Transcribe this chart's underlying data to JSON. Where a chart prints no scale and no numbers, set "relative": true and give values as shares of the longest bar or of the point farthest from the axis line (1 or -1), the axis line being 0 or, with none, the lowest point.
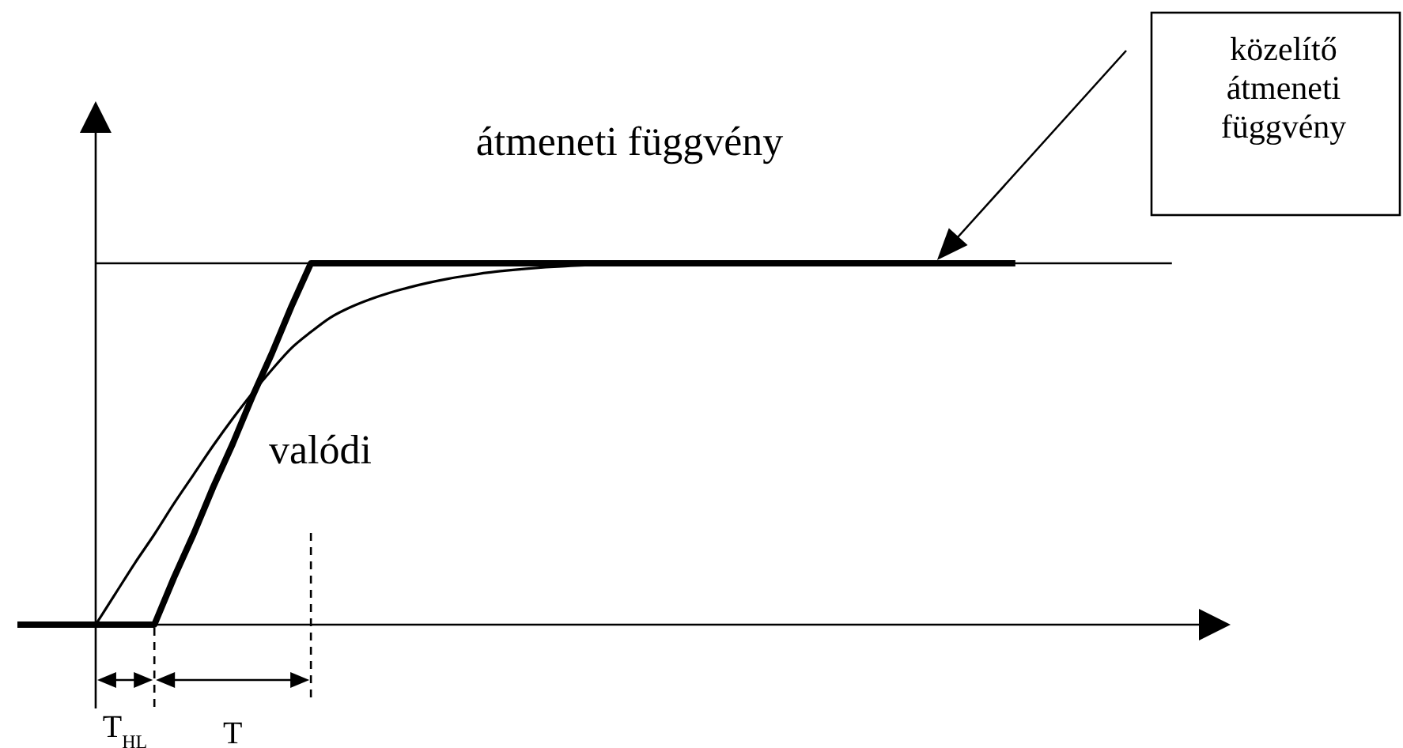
{
  "chart_data": {
    "type": "line",
    "title": "átmeneti függvény",
    "relative": true,
    "categories": [
      null,
      null,
      null,
      null,
      null,
      null,
      null,
      null,
      null,
      null,
      null,
      null,
      null,
      null,
      null,
      null,
      null,
      null,
      null,
      null,
      null,
      null,
      null,
      null,
      null,
      null,
      null,
      null,
      null,
      null,
      null,
      null,
      null,
      null,
      null,
      null,
      null,
      null,
      null,
      null,
      null,
      null,
      null,
      null,
      null,
      null,
      null,
      null,
      null,
      null,
      null,
      null,
      null,
      null,
      null,
      null,
      null,
      null,
      null,
      null,
      null,
      null,
      null
    ],
    "series": [
      {
        "name": "valódi",
        "color": "#000000",
        "values": [
          null,
          null,
          null,
          null,
          0,
          0.085,
          0.17,
          0.25,
          0.335,
          0.415,
          0.495,
          0.57,
          0.64,
          0.705,
          0.765,
          0.81,
          0.85,
          0.878,
          0.9,
          0.918,
          0.933,
          0.946,
          0.957,
          0.966,
          0.974,
          0.98,
          0.985,
          0.989,
          0.992,
          0.995,
          0.997,
          0.998,
          0.999,
          1,
          null,
          null,
          null,
          null,
          null,
          null,
          null,
          null,
          null,
          null,
          null,
          null,
          null,
          null,
          null,
          null,
          null,
          null,
          null,
          null,
          null,
          null,
          null,
          null,
          null,
          null,
          null,
          null,
          null
        ]
      },
      {
        "color": "#000000",
        "values": [
          0,
          0,
          0,
          0,
          0,
          0,
          0,
          0,
          0.13,
          0.25,
          0.38,
          0.5,
          0.63,
          0.75,
          0.88,
          1,
          1,
          1,
          1,
          1,
          1,
          1,
          1,
          1,
          1,
          1,
          1,
          1,
          1,
          1,
          1,
          1,
          1,
          1,
          1,
          1,
          1,
          1,
          1,
          1,
          1,
          1,
          1,
          1,
          1,
          1,
          1,
          1,
          1,
          1,
          1,
          1,
          null,
          null,
          null,
          null,
          null,
          null,
          null,
          null,
          null,
          null,
          null
        ]
      },
      {
        "color": "#000000",
        "values": [
          null,
          null,
          null,
          null,
          1,
          1,
          1,
          1,
          1,
          1,
          1,
          1,
          1,
          1,
          1,
          1,
          1,
          1,
          1,
          1,
          1,
          1,
          1,
          1,
          1,
          1,
          1,
          1,
          1,
          1,
          1,
          1,
          1,
          1,
          1,
          1,
          1,
          1,
          1,
          1,
          1,
          1,
          1,
          1,
          1,
          1,
          1,
          1,
          1,
          1,
          1,
          1,
          1,
          1,
          1,
          1,
          1,
          1,
          1,
          1,
          null,
          null,
          null
        ]
      }
    ],
    "annotations": [
      "T$_{HL}$",
      "T",
      "közelítő átmeneti függvény"
    ]
  }
}
